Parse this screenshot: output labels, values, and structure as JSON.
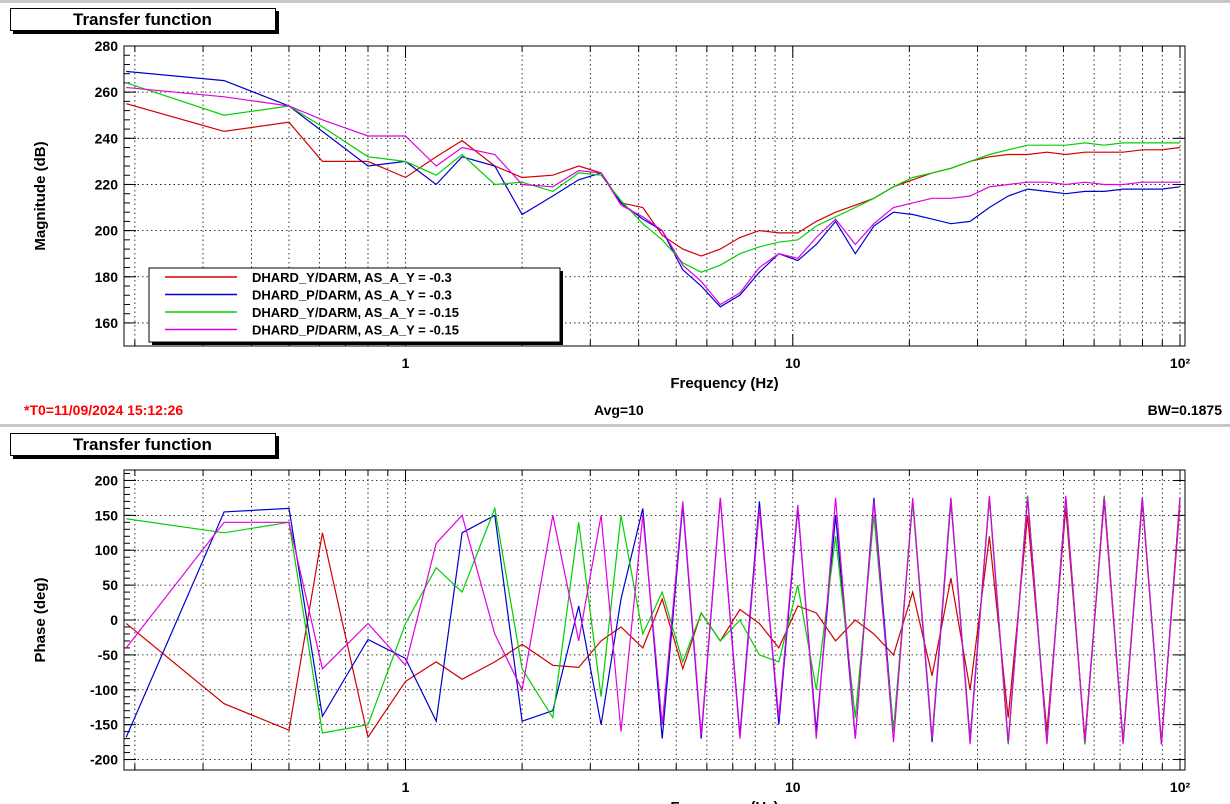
{
  "status": {
    "t0": "*T0=11/09/2024 15:12:26",
    "avg": "Avg=10",
    "bw": "BW=0.1875"
  },
  "colors": {
    "red": "#d00000",
    "blue": "#0000d0",
    "green": "#00d000",
    "magenta": "#e000e0"
  },
  "chart_data": [
    {
      "type": "line",
      "title": "Transfer function",
      "xlabel": "Frequency (Hz)",
      "ylabel": "Magnitude (dB)",
      "xscale": "log",
      "xlim": [
        0.1875,
        103
      ],
      "ylim": [
        150,
        280
      ],
      "yticks": [
        160,
        180,
        200,
        220,
        240,
        260,
        280
      ],
      "xticklabels": [
        "1",
        "10",
        "10²"
      ],
      "grid": true,
      "legend": "bottom-left",
      "series": [
        {
          "name": "DHARD_Y/DARM, AS_A_Y = -0.3",
          "color": "red",
          "x": [
            0.19,
            0.34,
            0.5,
            0.61,
            0.8,
            1.0,
            1.2,
            1.4,
            1.7,
            2.0,
            2.4,
            2.8,
            3.2,
            3.6,
            4.1,
            4.6,
            5.2,
            5.8,
            6.5,
            7.3,
            8.2,
            9.2,
            10.3,
            11.5,
            12.9,
            14.5,
            16.2,
            18.2,
            20.4,
            22.9,
            25.6,
            28.7,
            32.2,
            36,
            40.4,
            45.3,
            50.7,
            56.8,
            63.7,
            71.3,
            79.9,
            89.5,
            100
          ],
          "y": [
            255,
            243,
            247,
            230,
            230,
            223,
            232,
            239,
            228,
            223,
            224,
            228,
            225,
            212,
            210,
            198,
            192,
            189,
            192,
            197,
            200,
            199,
            199,
            204,
            208,
            211,
            214,
            219,
            222,
            225,
            227,
            230,
            232,
            233,
            233,
            234,
            233,
            234,
            234,
            234,
            235,
            235,
            236
          ]
        },
        {
          "name": "DHARD_P/DARM, AS_A_Y = -0.3",
          "color": "blue",
          "x": [
            0.19,
            0.34,
            0.5,
            0.61,
            0.8,
            1.0,
            1.2,
            1.4,
            1.7,
            2.0,
            2.4,
            2.8,
            3.2,
            3.6,
            4.1,
            4.6,
            5.2,
            5.8,
            6.5,
            7.3,
            8.2,
            9.2,
            10.3,
            11.5,
            12.9,
            14.5,
            16.2,
            18.2,
            20.4,
            22.9,
            25.6,
            28.7,
            32.2,
            36,
            40.4,
            45.3,
            50.7,
            56.8,
            63.7,
            71.3,
            79.9,
            89.5,
            100
          ],
          "y": [
            269,
            265,
            254,
            243,
            228,
            230,
            220,
            232,
            228,
            207,
            215,
            222,
            225,
            212,
            205,
            200,
            183,
            176,
            167,
            172,
            182,
            190,
            187,
            194,
            204,
            190,
            202,
            208,
            207,
            205,
            203,
            204,
            210,
            215,
            218,
            217,
            216,
            217,
            217,
            218,
            218,
            218,
            219
          ]
        },
        {
          "name": "DHARD_Y/DARM, AS_A_Y = -0.15",
          "color": "green",
          "x": [
            0.19,
            0.34,
            0.5,
            0.61,
            0.8,
            1.0,
            1.2,
            1.4,
            1.7,
            2.0,
            2.4,
            2.8,
            3.2,
            3.6,
            4.1,
            4.6,
            5.2,
            5.8,
            6.5,
            7.3,
            8.2,
            9.2,
            10.3,
            11.5,
            12.9,
            14.5,
            16.2,
            18.2,
            20.4,
            22.9,
            25.6,
            28.7,
            32.2,
            36,
            40.4,
            45.3,
            50.7,
            56.8,
            63.7,
            71.3,
            79.9,
            89.5,
            100
          ],
          "y": [
            264,
            250,
            254,
            245,
            232,
            230,
            224,
            233,
            220,
            221,
            217,
            225,
            224,
            213,
            203,
            196,
            186,
            182,
            185,
            190,
            193,
            195,
            196,
            202,
            206,
            210,
            214,
            219,
            223,
            225,
            227,
            230,
            233,
            235,
            237,
            237,
            237,
            238,
            237,
            238,
            238,
            238,
            238
          ]
        },
        {
          "name": "DHARD_P/DARM, AS_A_Y = -0.15",
          "color": "magenta",
          "x": [
            0.19,
            0.34,
            0.5,
            0.61,
            0.8,
            1.0,
            1.2,
            1.4,
            1.7,
            2.0,
            2.4,
            2.8,
            3.2,
            3.6,
            4.1,
            4.6,
            5.2,
            5.8,
            6.5,
            7.3,
            8.2,
            9.2,
            10.3,
            11.5,
            12.9,
            14.5,
            16.2,
            18.2,
            20.4,
            22.9,
            25.6,
            28.7,
            32.2,
            36,
            40.4,
            45.3,
            50.7,
            56.8,
            63.7,
            71.3,
            79.9,
            89.5,
            100
          ],
          "y": [
            262,
            258,
            254,
            248,
            241,
            241,
            228,
            236,
            233,
            220,
            219,
            226,
            225,
            211,
            206,
            200,
            185,
            178,
            168,
            173,
            184,
            190,
            188,
            197,
            205,
            194,
            203,
            210,
            212,
            214,
            214,
            215,
            219,
            220,
            221,
            221,
            220,
            221,
            220,
            220,
            221,
            221,
            221
          ]
        }
      ]
    },
    {
      "type": "line",
      "title": "Transfer function",
      "xlabel": "Frequency (Hz)",
      "ylabel": "Phase (deg)",
      "xscale": "log",
      "xlim": [
        0.1875,
        103
      ],
      "ylim": [
        -215,
        215
      ],
      "yticks": [
        -200,
        -150,
        -100,
        -50,
        0,
        50,
        100,
        150,
        200
      ],
      "xticklabels": [
        "1",
        "10",
        "10²"
      ],
      "grid": true,
      "series": [
        {
          "color": "red",
          "x": [
            0.19,
            0.34,
            0.5,
            0.61,
            0.8,
            1.0,
            1.2,
            1.4,
            1.7,
            2.0,
            2.4,
            2.8,
            3.2,
            3.6,
            4.1,
            4.6,
            5.2,
            5.8,
            6.5,
            7.3,
            8.2,
            9.2,
            10.3,
            11.5,
            12.9,
            14.5,
            16.2,
            18.2,
            20.4,
            22.9,
            25.6,
            28.7,
            32.2,
            36,
            40.4,
            45.3,
            50.7,
            56.8,
            63.7,
            71.3,
            79.9,
            89.5,
            100
          ],
          "y": [
            -5,
            -120,
            -158,
            125,
            -168,
            -88,
            -60,
            -85,
            -60,
            -35,
            -65,
            -68,
            -30,
            -10,
            -40,
            30,
            -70,
            10,
            -30,
            15,
            -5,
            -40,
            20,
            10,
            -30,
            0,
            -20,
            -50,
            40,
            -80,
            60,
            -100,
            120,
            -140,
            150,
            -160,
            160,
            -170,
            170,
            -175,
            170,
            -175,
            165
          ]
        },
        {
          "color": "blue",
          "x": [
            0.19,
            0.34,
            0.5,
            0.61,
            0.8,
            1.0,
            1.2,
            1.4,
            1.7,
            2.0,
            2.4,
            2.8,
            3.2,
            3.6,
            4.1,
            4.6,
            5.2,
            5.8,
            6.5,
            7.3,
            8.2,
            9.2,
            10.3,
            11.5,
            12.9,
            14.5,
            16.2,
            18.2,
            20.4,
            22.9,
            25.6,
            28.7,
            32.2,
            36,
            40.4,
            45.3,
            50.7,
            56.8,
            63.7,
            71.3,
            79.9,
            89.5,
            100
          ],
          "y": [
            -168,
            155,
            160,
            -138,
            -28,
            -55,
            -145,
            125,
            150,
            -145,
            -130,
            20,
            -150,
            30,
            160,
            -170,
            165,
            -170,
            175,
            -165,
            170,
            -150,
            160,
            -160,
            150,
            -170,
            175,
            -160,
            170,
            -175,
            170,
            -170,
            175,
            -178,
            178,
            -175,
            175,
            -178,
            178,
            -175,
            175,
            -178,
            175
          ]
        },
        {
          "color": "green",
          "x": [
            0.19,
            0.34,
            0.5,
            0.61,
            0.8,
            1.0,
            1.2,
            1.4,
            1.7,
            2.0,
            2.4,
            2.8,
            3.2,
            3.6,
            4.1,
            4.6,
            5.2,
            5.8,
            6.5,
            7.3,
            8.2,
            9.2,
            10.3,
            11.5,
            12.9,
            14.5,
            16.2,
            18.2,
            20.4,
            22.9,
            25.6,
            28.7,
            32.2,
            36,
            40.4,
            45.3,
            50.7,
            56.8,
            63.7,
            71.3,
            79.9,
            89.5,
            100
          ],
          "y": [
            145,
            125,
            140,
            -162,
            -150,
            -5,
            75,
            40,
            160,
            -70,
            -140,
            140,
            -110,
            150,
            -20,
            40,
            -60,
            10,
            -30,
            0,
            -50,
            -60,
            50,
            -100,
            120,
            -140,
            150,
            -160,
            170,
            -170,
            175,
            -175,
            175,
            -178,
            178,
            -175,
            175,
            -178,
            178,
            -175,
            175,
            -178,
            175
          ]
        },
        {
          "color": "magenta",
          "x": [
            0.19,
            0.34,
            0.5,
            0.61,
            0.8,
            1.0,
            1.2,
            1.4,
            1.7,
            2.0,
            2.4,
            2.8,
            3.2,
            3.6,
            4.1,
            4.6,
            5.2,
            5.8,
            6.5,
            7.3,
            8.2,
            9.2,
            10.3,
            11.5,
            12.9,
            14.5,
            16.2,
            18.2,
            20.4,
            22.9,
            25.6,
            28.7,
            32.2,
            36,
            40.4,
            45.3,
            50.7,
            56.8,
            63.7,
            71.3,
            79.9,
            89.5,
            100
          ],
          "y": [
            -40,
            140,
            140,
            -70,
            -5,
            -65,
            110,
            150,
            -20,
            -100,
            150,
            -30,
            150,
            -160,
            150,
            -150,
            170,
            -165,
            175,
            -170,
            160,
            -140,
            165,
            -170,
            175,
            -170,
            170,
            -175,
            175,
            -170,
            175,
            -178,
            178,
            -175,
            175,
            -178,
            178,
            -175,
            175,
            -178,
            175,
            -178,
            175
          ]
        }
      ]
    }
  ]
}
